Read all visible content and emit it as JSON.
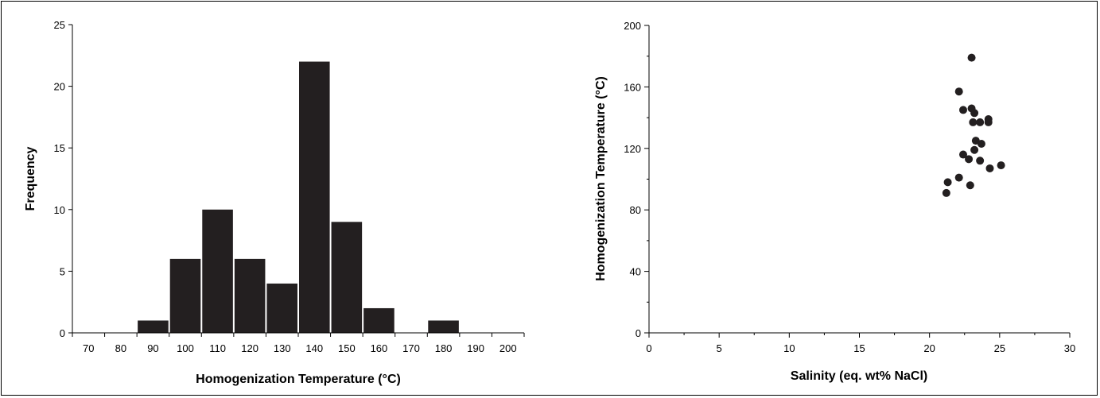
{
  "chart_data": [
    {
      "type": "bar",
      "subtype": "histogram",
      "xlabel": "Homogenization Temperature (°C)",
      "ylabel": "Frequency",
      "categories": [
        "70",
        "80",
        "90",
        "100",
        "110",
        "120",
        "130",
        "140",
        "150",
        "160",
        "170",
        "180",
        "190",
        "200"
      ],
      "values": [
        0,
        0,
        1,
        6,
        10,
        6,
        4,
        22,
        9,
        2,
        0,
        1,
        0,
        0
      ],
      "ylim": [
        0,
        25
      ],
      "yticks": [
        "0",
        "5",
        "10",
        "15",
        "20",
        "25"
      ],
      "grid": false,
      "bar_color": "#231f20"
    },
    {
      "type": "scatter",
      "xlabel": "Salinity (eq. wt% NaCl)",
      "ylabel": "Homogenization Temperature (°C)",
      "xlim": [
        0,
        30
      ],
      "ylim": [
        0,
        200
      ],
      "xticks": [
        "0",
        "5",
        "10",
        "15",
        "20",
        "25",
        "30"
      ],
      "yticks": [
        "0",
        "40",
        "80",
        "120",
        "160",
        "200"
      ],
      "grid": false,
      "marker_color": "#231f20",
      "points": [
        {
          "x": 23.0,
          "y": 179
        },
        {
          "x": 22.1,
          "y": 157
        },
        {
          "x": 22.4,
          "y": 145
        },
        {
          "x": 23.0,
          "y": 146
        },
        {
          "x": 23.2,
          "y": 143
        },
        {
          "x": 23.1,
          "y": 137
        },
        {
          "x": 23.6,
          "y": 137
        },
        {
          "x": 24.2,
          "y": 139
        },
        {
          "x": 24.2,
          "y": 137
        },
        {
          "x": 23.3,
          "y": 125
        },
        {
          "x": 23.7,
          "y": 123
        },
        {
          "x": 23.2,
          "y": 119
        },
        {
          "x": 22.4,
          "y": 116
        },
        {
          "x": 22.8,
          "y": 113
        },
        {
          "x": 23.6,
          "y": 112
        },
        {
          "x": 24.3,
          "y": 107
        },
        {
          "x": 25.1,
          "y": 109
        },
        {
          "x": 22.1,
          "y": 101
        },
        {
          "x": 21.3,
          "y": 98
        },
        {
          "x": 22.9,
          "y": 96
        },
        {
          "x": 21.2,
          "y": 91
        }
      ]
    }
  ]
}
